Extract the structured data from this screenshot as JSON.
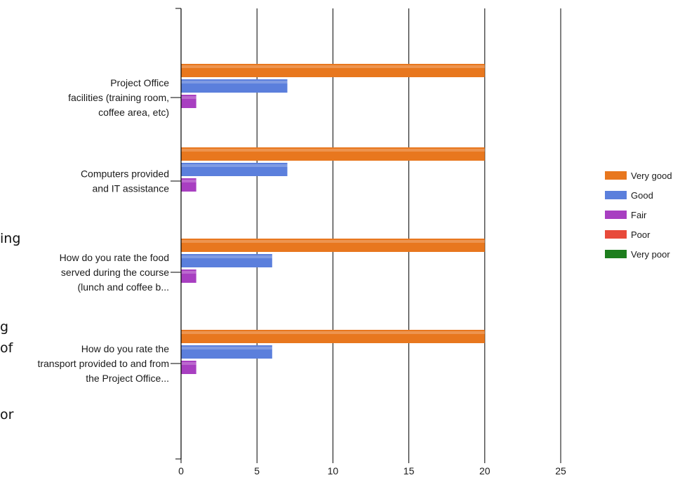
{
  "background_fragments": [
    "ing",
    "g",
    "of",
    "or"
  ],
  "chart_data": {
    "type": "bar",
    "orientation": "horizontal",
    "categories": [
      [
        "Project Office",
        "facilities (training room,",
        "coffee area, etc)"
      ],
      [
        "Computers provided",
        "and IT assistance"
      ],
      [
        "How do you rate the food",
        "served during the course",
        "(lunch and coffee b..."
      ],
      [
        "How do you rate the",
        "transport provided to and from",
        "the Project Office..."
      ]
    ],
    "series": [
      {
        "name": "Very good",
        "color": "#e8771e",
        "values": [
          20,
          20,
          20,
          20
        ]
      },
      {
        "name": "Good",
        "color": "#5b7fdc",
        "values": [
          7,
          7,
          6,
          6
        ]
      },
      {
        "name": "Fair",
        "color": "#a83fc1",
        "values": [
          1,
          1,
          1,
          1
        ]
      },
      {
        "name": "Poor",
        "color": "#e84a3a",
        "values": [
          0,
          0,
          0,
          0
        ]
      },
      {
        "name": "Very poor",
        "color": "#1e7e1e",
        "values": [
          0,
          0,
          0,
          0
        ]
      }
    ],
    "xlim": [
      0,
      25
    ],
    "xticks": [
      0,
      5,
      10,
      15,
      20,
      25
    ],
    "grid": true,
    "legend": "right"
  }
}
